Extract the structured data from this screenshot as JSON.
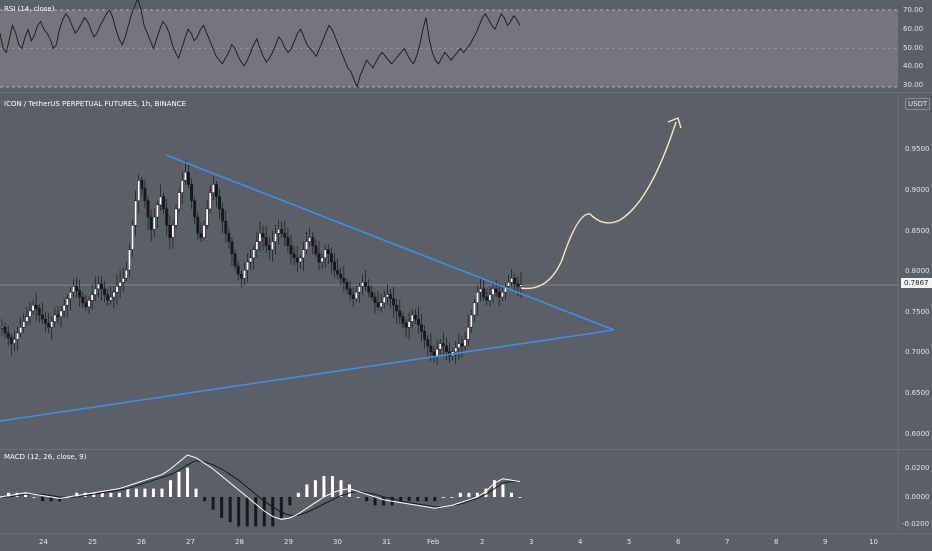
{
  "rsi": {
    "title": "RSI (14, close)",
    "levels": [
      "70.00",
      "60.00",
      "50.00",
      "40.00",
      "30.00"
    ],
    "values": [
      58,
      50,
      48,
      55,
      62,
      58,
      52,
      50,
      56,
      60,
      54,
      57,
      62,
      64,
      60,
      58,
      55,
      50,
      52,
      60,
      65,
      68,
      66,
      62,
      58,
      60,
      63,
      66,
      64,
      60,
      56,
      58,
      62,
      65,
      68,
      70,
      66,
      60,
      55,
      52,
      56,
      62,
      68,
      72,
      76,
      70,
      62,
      58,
      54,
      50,
      55,
      60,
      64,
      62,
      58,
      52,
      48,
      45,
      50,
      55,
      60,
      58,
      54,
      56,
      60,
      62,
      58,
      54,
      50,
      46,
      44,
      42,
      45,
      48,
      52,
      50,
      46,
      43,
      41,
      44,
      48,
      52,
      55,
      50,
      46,
      43,
      45,
      48,
      52,
      56,
      54,
      50,
      48,
      50,
      54,
      58,
      60,
      56,
      52,
      50,
      48,
      46,
      50,
      54,
      58,
      62,
      60,
      56,
      52,
      48,
      44,
      40,
      38,
      34,
      30,
      36,
      40,
      44,
      42,
      40,
      43,
      46,
      48,
      46,
      44,
      42,
      44,
      46,
      48,
      50,
      47,
      44,
      42,
      46,
      52,
      60,
      66,
      55,
      48,
      44,
      42,
      45,
      48,
      46,
      44,
      46,
      48,
      50,
      48,
      50,
      52,
      55,
      58,
      62,
      66,
      68,
      65,
      62,
      60,
      64,
      68,
      66,
      62,
      64,
      67,
      65,
      62
    ]
  },
  "price": {
    "title": "ICON / TetherUS PERPETUAL FUTURES, 1h, BINANCE",
    "currency": "USDT",
    "current": "0.7867",
    "ticks": [
      "0.9500",
      "0.9000",
      "0.8500",
      "0.8000",
      "0.7500",
      "0.7000",
      "0.6500",
      "0.6000"
    ],
    "closes": [
      0.735,
      0.728,
      0.722,
      0.715,
      0.72,
      0.728,
      0.735,
      0.742,
      0.748,
      0.755,
      0.762,
      0.758,
      0.75,
      0.745,
      0.74,
      0.735,
      0.742,
      0.75,
      0.748,
      0.755,
      0.762,
      0.77,
      0.778,
      0.785,
      0.78,
      0.772,
      0.765,
      0.76,
      0.768,
      0.775,
      0.782,
      0.788,
      0.782,
      0.775,
      0.768,
      0.772,
      0.778,
      0.785,
      0.79,
      0.795,
      0.805,
      0.83,
      0.86,
      0.89,
      0.915,
      0.905,
      0.89,
      0.87,
      0.855,
      0.87,
      0.885,
      0.895,
      0.88,
      0.86,
      0.845,
      0.86,
      0.88,
      0.9,
      0.915,
      0.925,
      0.91,
      0.89,
      0.87,
      0.85,
      0.845,
      0.86,
      0.88,
      0.9,
      0.91,
      0.895,
      0.88,
      0.865,
      0.85,
      0.84,
      0.825,
      0.81,
      0.8,
      0.795,
      0.805,
      0.815,
      0.82,
      0.83,
      0.84,
      0.85,
      0.845,
      0.835,
      0.83,
      0.84,
      0.85,
      0.855,
      0.85,
      0.845,
      0.835,
      0.825,
      0.82,
      0.815,
      0.82,
      0.83,
      0.84,
      0.845,
      0.835,
      0.825,
      0.815,
      0.82,
      0.83,
      0.825,
      0.815,
      0.805,
      0.8,
      0.795,
      0.79,
      0.782,
      0.775,
      0.77,
      0.778,
      0.785,
      0.79,
      0.785,
      0.778,
      0.772,
      0.765,
      0.76,
      0.765,
      0.772,
      0.775,
      0.77,
      0.762,
      0.755,
      0.748,
      0.74,
      0.735,
      0.742,
      0.75,
      0.745,
      0.738,
      0.73,
      0.72,
      0.712,
      0.705,
      0.7,
      0.708,
      0.715,
      0.712,
      0.705,
      0.7,
      0.705,
      0.71,
      0.715,
      0.712,
      0.72,
      0.735,
      0.75,
      0.765,
      0.778,
      0.782,
      0.772,
      0.768,
      0.775,
      0.782,
      0.778,
      0.772,
      0.778,
      0.785,
      0.79,
      0.795,
      0.788,
      0.785,
      0.787
    ]
  },
  "macd": {
    "title": "MACD (12, 26, close, 9)",
    "ticks": [
      "0.0200",
      "0.0000",
      "-0.0200"
    ],
    "macd": [
      0.0,
      0.001,
      0.002,
      0.003,
      0.002,
      0.001,
      0.0,
      -0.001,
      0.0,
      0.001,
      0.002,
      0.003,
      0.004,
      0.005,
      0.006,
      0.008,
      0.01,
      0.012,
      0.014,
      0.016,
      0.02,
      0.025,
      0.03,
      0.028,
      0.024,
      0.02,
      0.015,
      0.01,
      0.005,
      0.0,
      -0.005,
      -0.01,
      -0.014,
      -0.016,
      -0.015,
      -0.012,
      -0.008,
      -0.004,
      0.0,
      0.003,
      0.005,
      0.006,
      0.004,
      0.002,
      0.0,
      -0.002,
      -0.003,
      -0.004,
      -0.005,
      -0.006,
      -0.007,
      -0.008,
      -0.007,
      -0.006,
      -0.004,
      -0.002,
      0.0,
      0.004,
      0.01,
      0.013,
      0.012,
      0.011
    ],
    "signal": [
      0.0,
      0.0,
      0.001,
      0.002,
      0.002,
      0.002,
      0.001,
      0.0,
      0.0,
      0.0,
      0.001,
      0.002,
      0.003,
      0.004,
      0.005,
      0.006,
      0.008,
      0.01,
      0.012,
      0.014,
      0.016,
      0.019,
      0.023,
      0.026,
      0.025,
      0.023,
      0.02,
      0.016,
      0.012,
      0.007,
      0.002,
      -0.003,
      -0.007,
      -0.011,
      -0.013,
      -0.013,
      -0.011,
      -0.008,
      -0.005,
      -0.002,
      0.001,
      0.003,
      0.004,
      0.003,
      0.002,
      0.0,
      -0.001,
      -0.003,
      -0.004,
      -0.005,
      -0.006,
      -0.007,
      -0.007,
      -0.006,
      -0.005,
      -0.003,
      -0.001,
      0.002,
      0.006,
      0.01,
      0.011,
      0.011
    ]
  },
  "xaxis": {
    "labels": [
      "24",
      "25",
      "26",
      "27",
      "28",
      "29",
      "30",
      "31",
      "Feb",
      "2",
      "3",
      "4",
      "5",
      "6",
      "7",
      "8",
      "9",
      "10"
    ]
  },
  "colors": {
    "background": "#5d5f66",
    "panel": "#75767d",
    "trendline": "#3d8fe8",
    "projection": "#f3eac2",
    "candle": "#16181c",
    "rsi_line": "#16181c",
    "macd_line": "#ffffff",
    "signal_line": "#16181c"
  }
}
